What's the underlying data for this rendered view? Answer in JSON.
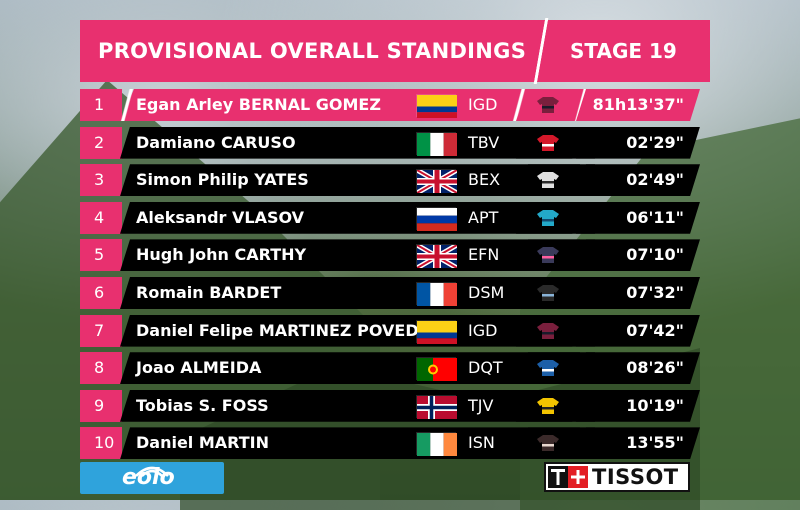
{
  "header": {
    "title": "PROVISIONAL OVERALL STANDINGS",
    "stage": "STAGE 19"
  },
  "colors": {
    "accent": "#e8306f",
    "row_bg": "#000000"
  },
  "standings": [
    {
      "pos": "1",
      "name": "Egan Arley BERNAL GOMEZ",
      "flag": "flag-colombia",
      "team": "IGD",
      "jersey": "jersey-ineos",
      "time": "81h13'37\""
    },
    {
      "pos": "2",
      "name": "Damiano CARUSO",
      "flag": "flag-italy",
      "team": "TBV",
      "jersey": "jersey-bahrain",
      "time": "02'29\""
    },
    {
      "pos": "3",
      "name": "Simon Philip YATES",
      "flag": "flag-united-kingdom",
      "team": "BEX",
      "jersey": "jersey-bikeexchange",
      "time": "02'49\""
    },
    {
      "pos": "4",
      "name": "Aleksandr VLASOV",
      "flag": "flag-russia",
      "team": "APT",
      "jersey": "jersey-astana",
      "time": "06'11\""
    },
    {
      "pos": "5",
      "name": "Hugh John CARTHY",
      "flag": "flag-united-kingdom",
      "team": "EFN",
      "jersey": "jersey-ef",
      "time": "07'10\""
    },
    {
      "pos": "6",
      "name": "Romain BARDET",
      "flag": "flag-france",
      "team": "DSM",
      "jersey": "jersey-dsm",
      "time": "07'32\""
    },
    {
      "pos": "7",
      "name": "Daniel Felipe MARTINEZ POVEDA",
      "flag": "flag-colombia",
      "team": "IGD",
      "jersey": "jersey-ineos",
      "time": "07'42\""
    },
    {
      "pos": "8",
      "name": "Joao ALMEIDA",
      "flag": "flag-portugal",
      "team": "DQT",
      "jersey": "jersey-deceuninck",
      "time": "08'26\""
    },
    {
      "pos": "9",
      "name": "Tobias S. FOSS",
      "flag": "flag-norway",
      "team": "TJV",
      "jersey": "jersey-jumbo-visma",
      "time": "10'19\""
    },
    {
      "pos": "10",
      "name": "Daniel MARTIN",
      "flag": "flag-ireland",
      "team": "ISN",
      "jersey": "jersey-israel",
      "time": "13'55\""
    }
  ],
  "sponsors": {
    "left": "eolo",
    "right": "TISSOT"
  }
}
